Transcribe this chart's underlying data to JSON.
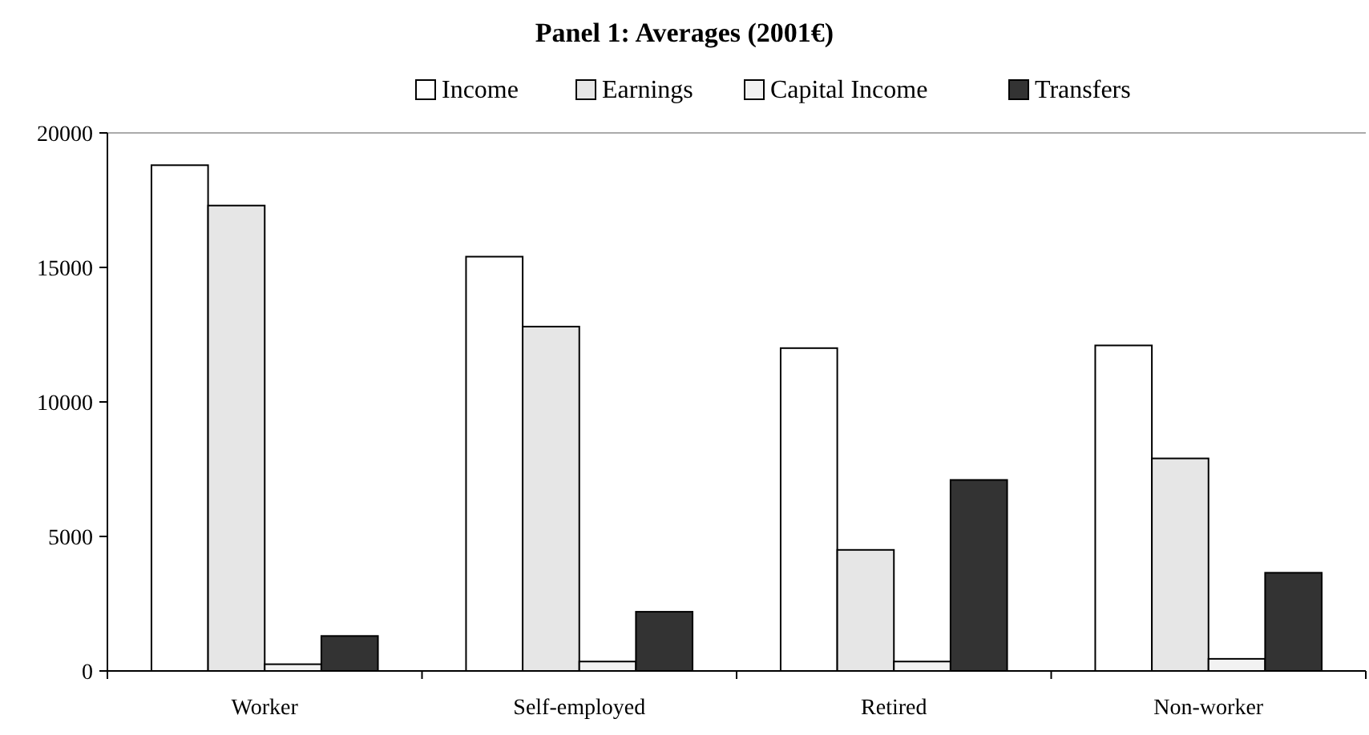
{
  "chart_data": {
    "type": "bar",
    "title": "Panel 1: Averages (2001€)",
    "categories": [
      "Worker",
      "Self-employed",
      "Retired",
      "Non-worker"
    ],
    "series": [
      {
        "name": "Income",
        "color": "#ffffff",
        "values": [
          18800,
          15400,
          12000,
          12100
        ]
      },
      {
        "name": "Earnings",
        "color": "#e6e6e6",
        "values": [
          17300,
          12800,
          4500,
          7900
        ]
      },
      {
        "name": "Capital Income",
        "color": "#f2f2f2",
        "values": [
          250,
          350,
          350,
          450
        ]
      },
      {
        "name": "Transfers",
        "color": "#333333",
        "values": [
          1300,
          2200,
          7100,
          3650
        ]
      }
    ],
    "ylim": [
      0,
      20000
    ],
    "yticks": [
      0,
      5000,
      10000,
      15000,
      20000
    ],
    "grid": false,
    "legend": "top"
  }
}
